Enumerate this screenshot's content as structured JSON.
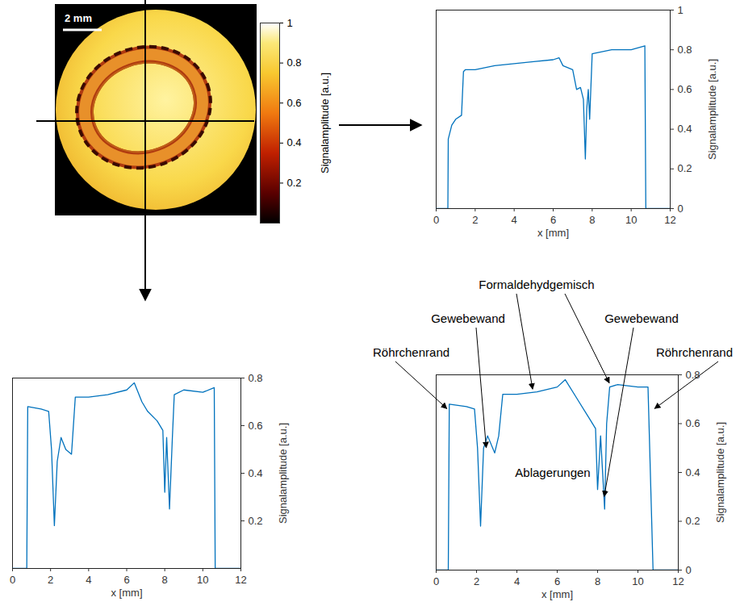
{
  "chart_data": [
    {
      "type": "image",
      "scale_bar": "2 mm",
      "colorbar": {
        "range": [
          0,
          1
        ],
        "ticks": [
          0.2,
          0.4,
          0.6,
          0.8,
          1
        ],
        "label": "Signalamplitude [a.u.]"
      }
    },
    {
      "type": "line",
      "xlabel": "x [mm]",
      "ylabel": "Signalamplitude [a.u.]",
      "color": "#0072bd",
      "xlim": [
        0,
        12
      ],
      "xticks": [
        0,
        2,
        4,
        6,
        8,
        10,
        12
      ],
      "ylim": [
        0,
        1
      ],
      "yticks": [
        0,
        0.2,
        0.4,
        0.6,
        0.8,
        1
      ],
      "x": [
        0,
        0.6,
        0.62,
        0.8,
        1.0,
        1.3,
        1.4,
        1.5,
        2,
        3,
        4,
        5,
        6,
        6.3,
        6.5,
        7.0,
        7.2,
        7.4,
        7.55,
        7.65,
        7.72,
        7.8,
        7.87,
        8.0,
        9,
        10,
        10.7,
        10.75,
        12
      ],
      "values": [
        0,
        0,
        0.35,
        0.42,
        0.45,
        0.47,
        0.69,
        0.7,
        0.7,
        0.72,
        0.73,
        0.74,
        0.75,
        0.76,
        0.72,
        0.7,
        0.6,
        0.61,
        0.55,
        0.25,
        0.5,
        0.6,
        0.45,
        0.78,
        0.8,
        0.8,
        0.82,
        0,
        0
      ]
    },
    {
      "type": "line",
      "xlabel": "x [mm]",
      "ylabel": "Signalamplitude [a.u.]",
      "color": "#0072bd",
      "xlim": [
        0,
        12
      ],
      "xticks": [
        0,
        2,
        4,
        6,
        8,
        10,
        12
      ],
      "ylim": [
        0,
        0.8
      ],
      "yticks": [
        0.2,
        0.4,
        0.6,
        0.8
      ],
      "x": [
        0,
        0.75,
        0.8,
        1.5,
        1.9,
        2.05,
        2.2,
        2.35,
        2.55,
        2.8,
        3.1,
        3.3,
        4,
        5,
        6,
        6.4,
        6.8,
        7.1,
        7.6,
        7.9,
        8.0,
        8.1,
        8.25,
        8.4,
        8.5,
        9,
        10,
        10.6,
        10.65,
        12
      ],
      "values": [
        0,
        0,
        0.68,
        0.67,
        0.66,
        0.5,
        0.18,
        0.45,
        0.55,
        0.5,
        0.48,
        0.72,
        0.72,
        0.73,
        0.75,
        0.78,
        0.7,
        0.66,
        0.62,
        0.58,
        0.32,
        0.55,
        0.25,
        0.55,
        0.73,
        0.75,
        0.74,
        0.76,
        0,
        0
      ]
    },
    {
      "type": "line",
      "xlabel": "x [mm]",
      "ylabel": "Signalamplitude [a.u.]",
      "color": "#0072bd",
      "xlim": [
        0,
        12
      ],
      "xticks": [
        0,
        2,
        4,
        6,
        8,
        10,
        12
      ],
      "ylim": [
        0,
        0.8
      ],
      "yticks": [
        0,
        0.2,
        0.4,
        0.6,
        0.8
      ],
      "x": [
        0,
        0.6,
        0.65,
        1.5,
        1.9,
        2.05,
        2.2,
        2.35,
        2.55,
        2.9,
        3.1,
        3.3,
        4,
        5,
        6,
        6.4,
        7.0,
        7.6,
        7.9,
        8.0,
        8.15,
        8.35,
        8.45,
        8.6,
        9,
        10,
        10.5,
        10.75,
        12
      ],
      "values": [
        0,
        0,
        0.68,
        0.67,
        0.66,
        0.5,
        0.18,
        0.5,
        0.55,
        0.48,
        0.55,
        0.72,
        0.72,
        0.73,
        0.75,
        0.78,
        0.7,
        0.62,
        0.58,
        0.33,
        0.55,
        0.25,
        0.6,
        0.75,
        0.76,
        0.75,
        0.75,
        0,
        0
      ],
      "annotations": [
        "Röhrchenrand",
        "Gewebewand",
        "Formaldehydgemisch",
        "Gewebewand",
        "Röhrchenrand",
        "Ablagerungen"
      ]
    }
  ]
}
